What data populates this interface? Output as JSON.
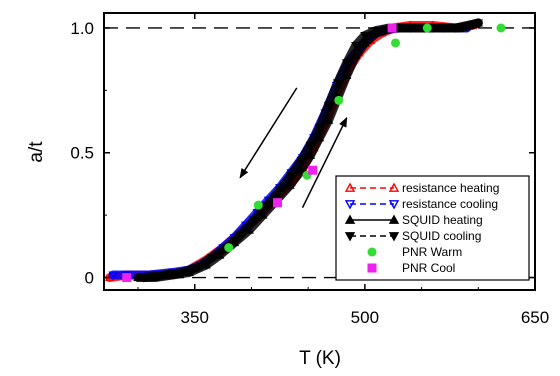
{
  "chart_data": {
    "type": "scatter",
    "title": "",
    "xlabel": "T (K)",
    "ylabel": "a/t",
    "xlim": [
      270,
      650
    ],
    "ylim": [
      -0.05,
      1.06
    ],
    "xticks": [
      350,
      500,
      650
    ],
    "yticks": [
      0,
      0.5,
      1.0
    ],
    "xtick_labels": [
      "350",
      "500",
      "650"
    ],
    "ytick_labels": [
      "0",
      "0.5",
      "1.0"
    ],
    "reference_lines": [
      0,
      1.0
    ],
    "grid": false,
    "legend_position": "bottom-right",
    "series": [
      {
        "name": "resistance heating",
        "color": "#ff0000",
        "marker": "triangle-up-open",
        "line_style": "dashed",
        "points": [
          [
            275,
            0.0
          ],
          [
            290,
            0.01
          ],
          [
            310,
            0.01
          ],
          [
            330,
            0.01
          ],
          [
            345,
            0.03
          ],
          [
            360,
            0.07
          ],
          [
            375,
            0.12
          ],
          [
            390,
            0.18
          ],
          [
            405,
            0.24
          ],
          [
            420,
            0.31
          ],
          [
            435,
            0.38
          ],
          [
            445,
            0.44
          ],
          [
            455,
            0.52
          ],
          [
            465,
            0.62
          ],
          [
            475,
            0.73
          ],
          [
            485,
            0.83
          ],
          [
            495,
            0.9
          ],
          [
            505,
            0.95
          ],
          [
            515,
            0.98
          ],
          [
            525,
            1.0
          ],
          [
            540,
            1.01
          ],
          [
            560,
            1.01
          ],
          [
            580,
            1.0
          ],
          [
            595,
            1.01
          ]
        ]
      },
      {
        "name": "resistance cooling",
        "color": "#0000ff",
        "marker": "triangle-down-open",
        "line_style": "dashed",
        "points": [
          [
            590,
            1.0
          ],
          [
            570,
            1.0
          ],
          [
            550,
            1.0
          ],
          [
            530,
            1.0
          ],
          [
            515,
            0.99
          ],
          [
            505,
            0.97
          ],
          [
            495,
            0.92
          ],
          [
            485,
            0.86
          ],
          [
            475,
            0.77
          ],
          [
            465,
            0.66
          ],
          [
            455,
            0.56
          ],
          [
            445,
            0.48
          ],
          [
            435,
            0.42
          ],
          [
            425,
            0.36
          ],
          [
            415,
            0.31
          ],
          [
            405,
            0.26
          ],
          [
            395,
            0.21
          ],
          [
            385,
            0.16
          ],
          [
            375,
            0.12
          ],
          [
            365,
            0.08
          ],
          [
            355,
            0.05
          ],
          [
            345,
            0.03
          ],
          [
            330,
            0.02
          ],
          [
            310,
            0.01
          ],
          [
            290,
            0.01
          ],
          [
            278,
            0.01
          ]
        ]
      },
      {
        "name": "SQUID heating",
        "color": "#000000",
        "marker": "triangle-up-filled",
        "line_style": "solid",
        "points": [
          [
            300,
            0.0
          ],
          [
            315,
            0.0
          ],
          [
            330,
            0.01
          ],
          [
            345,
            0.02
          ],
          [
            360,
            0.05
          ],
          [
            372,
            0.09
          ],
          [
            385,
            0.14
          ],
          [
            398,
            0.19
          ],
          [
            410,
            0.25
          ],
          [
            422,
            0.31
          ],
          [
            434,
            0.37
          ],
          [
            444,
            0.43
          ],
          [
            452,
            0.49
          ],
          [
            460,
            0.56
          ],
          [
            468,
            0.63
          ],
          [
            476,
            0.72
          ],
          [
            484,
            0.81
          ],
          [
            492,
            0.89
          ],
          [
            500,
            0.94
          ],
          [
            510,
            0.98
          ],
          [
            525,
            1.0
          ],
          [
            545,
            1.0
          ],
          [
            565,
            1.0
          ],
          [
            585,
            1.0
          ],
          [
            600,
            1.02
          ]
        ]
      },
      {
        "name": "SQUID cooling",
        "color": "#000000",
        "marker": "triangle-down-filled",
        "line_style": "dashed",
        "points": [
          [
            600,
            1.02
          ],
          [
            580,
            1.0
          ],
          [
            560,
            1.0
          ],
          [
            540,
            1.0
          ],
          [
            522,
            1.0
          ],
          [
            510,
            0.99
          ],
          [
            500,
            0.97
          ],
          [
            492,
            0.93
          ],
          [
            484,
            0.86
          ],
          [
            476,
            0.78
          ],
          [
            468,
            0.69
          ],
          [
            460,
            0.6
          ],
          [
            452,
            0.53
          ],
          [
            444,
            0.47
          ],
          [
            435,
            0.41
          ],
          [
            425,
            0.35
          ],
          [
            414,
            0.29
          ],
          [
            402,
            0.23
          ],
          [
            390,
            0.17
          ],
          [
            378,
            0.12
          ],
          [
            365,
            0.08
          ],
          [
            352,
            0.04
          ],
          [
            338,
            0.02
          ],
          [
            322,
            0.01
          ],
          [
            305,
            0.0
          ]
        ]
      },
      {
        "name": "PNR Warm",
        "color": "#33dd33",
        "marker": "circle-filled",
        "line_style": "none",
        "points": [
          [
            380,
            0.12
          ],
          [
            406,
            0.29
          ],
          [
            449,
            0.41
          ],
          [
            477,
            0.71
          ],
          [
            527,
            0.94
          ],
          [
            555,
            1.0
          ],
          [
            620,
            1.0
          ]
        ]
      },
      {
        "name": "PNR Cool",
        "color": "#ee22ee",
        "marker": "square-filled",
        "line_style": "none",
        "points": [
          [
            290,
            0.0
          ],
          [
            423,
            0.3
          ],
          [
            454,
            0.43
          ],
          [
            524,
            1.0
          ]
        ]
      }
    ],
    "annotations": [
      {
        "type": "arrow",
        "from": [
          440,
          0.76
        ],
        "to": [
          390,
          0.4
        ],
        "color": "#000000"
      },
      {
        "type": "arrow",
        "from": [
          445,
          0.28
        ],
        "to": [
          484,
          0.64
        ],
        "color": "#000000"
      }
    ]
  }
}
